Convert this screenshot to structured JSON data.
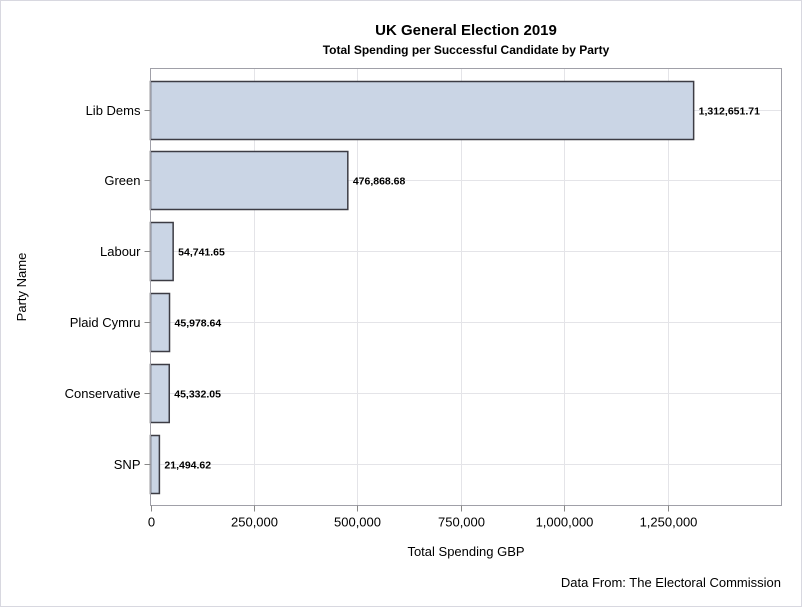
{
  "chart_data": {
    "type": "bar",
    "orientation": "horizontal",
    "title": "UK General Election 2019",
    "subtitle": "Total Spending per Successful Candidate by Party",
    "xlabel": "Total Spending GBP",
    "ylabel": "Party Name",
    "footnote": "Data From: The Electoral Commission",
    "categories": [
      "Lib Dems",
      "Green",
      "Labour",
      "Plaid Cymru",
      "Conservative",
      "SNP"
    ],
    "values": [
      1312651.71,
      476868.68,
      54741.65,
      45978.64,
      45332.05,
      21494.62
    ],
    "value_labels": [
      "1,312,651.71",
      "476,868.68",
      "54,741.65",
      "45,978.64",
      "45,332.05",
      "21,494.62"
    ],
    "xticks": [
      0,
      250000,
      500000,
      750000,
      1000000,
      1250000
    ],
    "xtick_labels": [
      "0",
      "250,000",
      "500,000",
      "750,000",
      "1,000,000",
      "1,250,000"
    ],
    "xlim": [
      0,
      1525000
    ],
    "grid": true,
    "bar_color": "#cad5e5",
    "bar_edge_color": "#3c3c44"
  }
}
